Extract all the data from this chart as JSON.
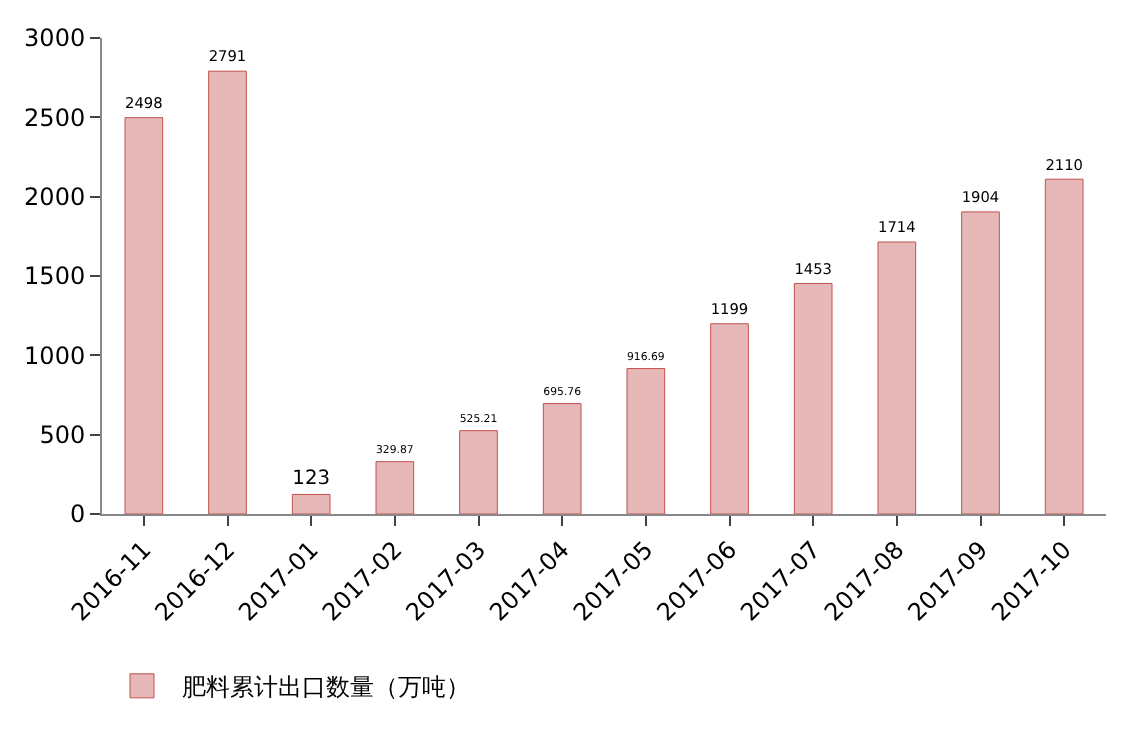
{
  "chart_data": {
    "type": "bar",
    "categories": [
      "2016-11",
      "2016-12",
      "2017-01",
      "2017-02",
      "2017-03",
      "2017-04",
      "2017-05",
      "2017-06",
      "2017-07",
      "2017-08",
      "2017-09",
      "2017-10"
    ],
    "series": [
      {
        "name": "肥料累计出口数量（万吨）",
        "color": "#e6b9b8",
        "values": [
          2498,
          2791,
          123,
          329.87,
          525.21,
          695.76,
          916.69,
          1199,
          1453,
          1714,
          1904,
          2110
        ]
      }
    ],
    "ylim": [
      0,
      3000
    ],
    "yticks": [
      0,
      500,
      1000,
      1500,
      2000,
      2500,
      3000
    ],
    "data_labels": true,
    "legend": "bottom left",
    "grid": false
  }
}
